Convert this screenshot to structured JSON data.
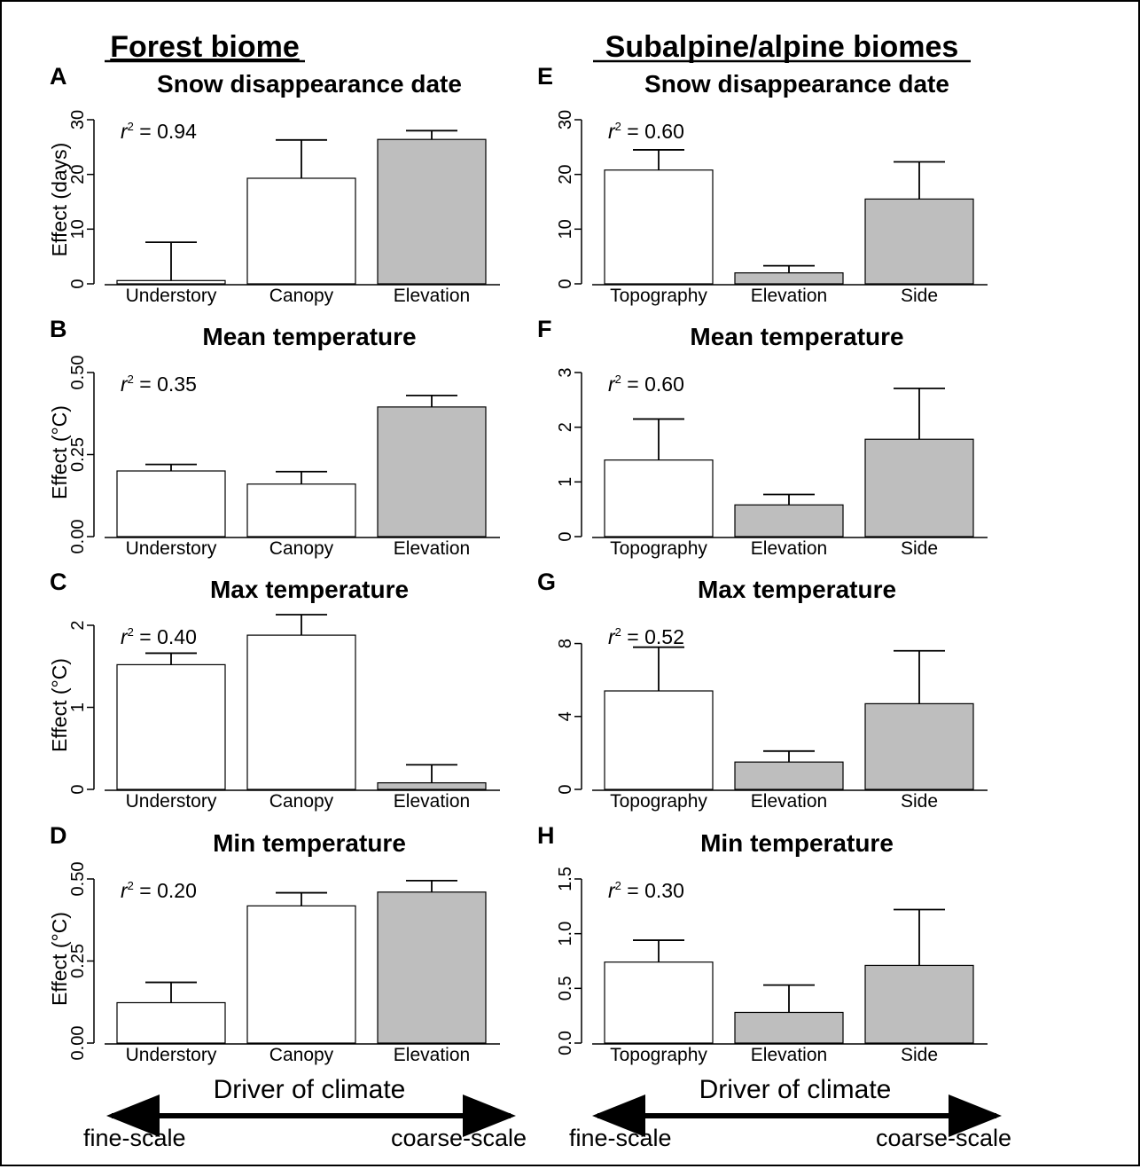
{
  "colors": {
    "fine_bar": "#ffffff",
    "coarse_bar": "#bebebe",
    "outline": "#000000"
  },
  "headings": {
    "forest": "Forest biome",
    "alpine": "Subalpine/alpine biomes"
  },
  "footer": {
    "xlabel": "Driver of climate",
    "fine": "fine-scale",
    "coarse": "coarse-scale"
  },
  "chart_data": [
    {
      "type": "bar",
      "letter": "A",
      "title": "Snow disappearance date",
      "ylabel": "Effect (days)",
      "r2": "0.94",
      "categories": [
        "Understory",
        "Canopy",
        "Elevation"
      ],
      "values": [
        0.6,
        19.3,
        26.4
      ],
      "errors": [
        7.6,
        26.3,
        28.0
      ],
      "fill": [
        "white",
        "white",
        "gray"
      ],
      "ylim": [
        0,
        30
      ],
      "ticks": [
        0,
        10,
        20,
        30
      ],
      "tick_labels": [
        "0",
        "10",
        "20",
        "30"
      ]
    },
    {
      "type": "bar",
      "letter": "B",
      "title": "Mean temperature",
      "ylabel": "Effect (°C)",
      "r2": "0.35",
      "categories": [
        "Understory",
        "Canopy",
        "Elevation"
      ],
      "values": [
        0.2,
        0.16,
        0.395
      ],
      "errors": [
        0.22,
        0.198,
        0.43
      ],
      "fill": [
        "white",
        "white",
        "gray"
      ],
      "ylim": [
        0,
        0.5
      ],
      "ticks": [
        0,
        0.25,
        0.5
      ],
      "tick_labels": [
        "0.00",
        "0.25",
        "0.50"
      ]
    },
    {
      "type": "bar",
      "letter": "C",
      "title": "Max temperature",
      "ylabel": "Effect (°C)",
      "r2": "0.40",
      "categories": [
        "Understory",
        "Canopy",
        "Elevation"
      ],
      "values": [
        1.52,
        1.88,
        0.08
      ],
      "errors": [
        1.66,
        2.13,
        0.3
      ],
      "fill": [
        "white",
        "white",
        "gray"
      ],
      "ylim": [
        0,
        2
      ],
      "ticks": [
        0,
        1,
        2
      ],
      "tick_labels": [
        "0",
        "1",
        "2"
      ]
    },
    {
      "type": "bar",
      "letter": "D",
      "title": "Min temperature",
      "ylabel": "Effect (°C)",
      "r2": "0.20",
      "categories": [
        "Understory",
        "Canopy",
        "Elevation"
      ],
      "values": [
        0.123,
        0.418,
        0.46
      ],
      "errors": [
        0.185,
        0.458,
        0.495
      ],
      "fill": [
        "white",
        "white",
        "gray"
      ],
      "ylim": [
        0,
        0.5
      ],
      "ticks": [
        0,
        0.25,
        0.5
      ],
      "tick_labels": [
        "0.00",
        "0.25",
        "0.50"
      ]
    },
    {
      "type": "bar",
      "letter": "E",
      "title": "Snow disappearance date",
      "ylabel": "",
      "r2": "0.60",
      "categories": [
        "Topography",
        "Elevation",
        "Side"
      ],
      "values": [
        20.8,
        2.0,
        15.5
      ],
      "errors": [
        24.5,
        3.3,
        22.3
      ],
      "fill": [
        "white",
        "gray",
        "gray"
      ],
      "ylim": [
        0,
        30
      ],
      "ticks": [
        0,
        10,
        20,
        30
      ],
      "tick_labels": [
        "0",
        "10",
        "20",
        "30"
      ]
    },
    {
      "type": "bar",
      "letter": "F",
      "title": "Mean temperature",
      "ylabel": "",
      "r2": "0.60",
      "categories": [
        "Topography",
        "Elevation",
        "Side"
      ],
      "values": [
        1.4,
        0.58,
        1.78
      ],
      "errors": [
        2.15,
        0.77,
        2.71
      ],
      "fill": [
        "white",
        "gray",
        "gray"
      ],
      "ylim": [
        0,
        3
      ],
      "ticks": [
        0,
        1,
        2,
        3
      ],
      "tick_labels": [
        "0",
        "1",
        "2",
        "3"
      ]
    },
    {
      "type": "bar",
      "letter": "G",
      "title": "Max temperature",
      "ylabel": "",
      "r2": "0.52",
      "categories": [
        "Topography",
        "Elevation",
        "Side"
      ],
      "values": [
        5.4,
        1.5,
        4.7
      ],
      "errors": [
        7.8,
        2.1,
        7.6
      ],
      "fill": [
        "white",
        "gray",
        "gray"
      ],
      "ylim": [
        0,
        9
      ],
      "ticks": [
        0,
        4,
        8
      ],
      "tick_labels": [
        "0",
        "4",
        "8"
      ]
    },
    {
      "type": "bar",
      "letter": "H",
      "title": "Min temperature",
      "ylabel": "",
      "r2": "0.30",
      "categories": [
        "Topography",
        "Elevation",
        "Side"
      ],
      "values": [
        0.74,
        0.28,
        0.71
      ],
      "errors": [
        0.94,
        0.53,
        1.22
      ],
      "fill": [
        "white",
        "gray",
        "gray"
      ],
      "ylim": [
        0,
        1.5
      ],
      "ticks": [
        0,
        0.5,
        1.0,
        1.5
      ],
      "tick_labels": [
        "0.0",
        "0.5",
        "1.0",
        "1.5"
      ]
    }
  ]
}
